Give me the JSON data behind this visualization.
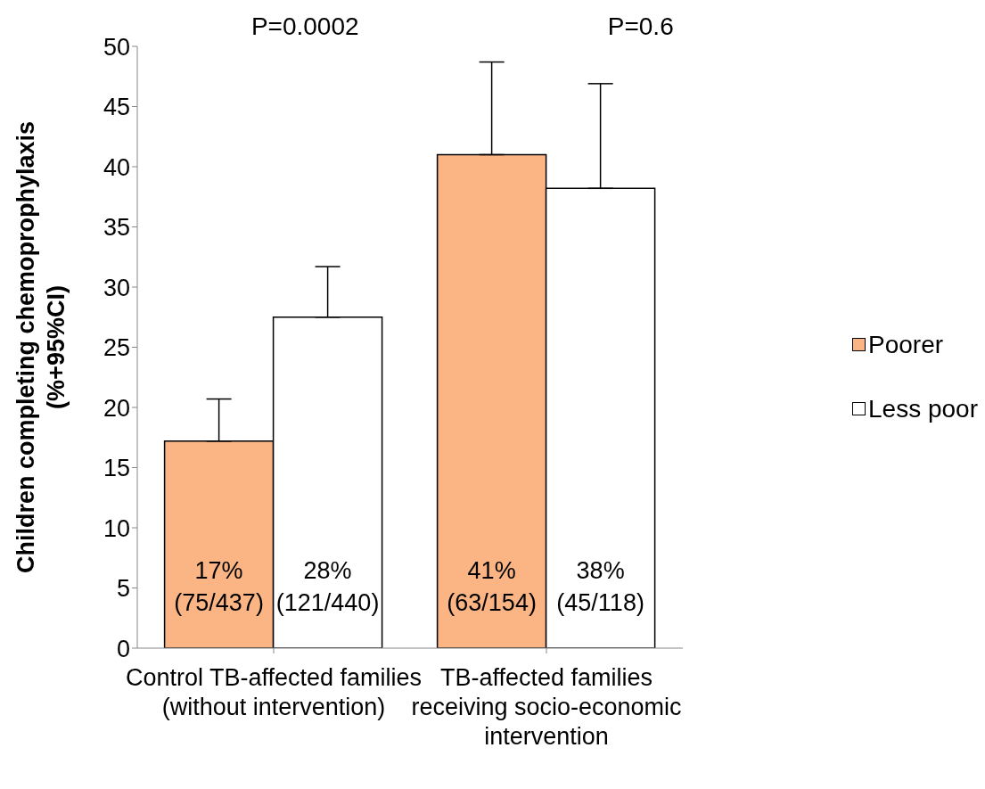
{
  "chart_data": {
    "type": "bar",
    "ylabel": "Children completing chemoprophylaxis (%+95%CI)",
    "categories": [
      "Control TB-affected families (without intervention)",
      "TB-affected families receiving socio-economic intervention"
    ],
    "series": [
      {
        "name": "Poorer",
        "color": "#fbb584",
        "values": [
          17.2,
          41
        ],
        "errors": [
          [
            17.2,
            20.7
          ],
          [
            41,
            48.7
          ]
        ],
        "value_labels": [
          "17%\n(75/437)",
          "41%\n(63/154)"
        ]
      },
      {
        "name": "Less poor",
        "color": "#ffffff",
        "values": [
          27.5,
          38.2
        ],
        "errors": [
          [
            27.5,
            31.7
          ],
          [
            38.2,
            46.9
          ]
        ],
        "value_labels": [
          "28%\n(121/440)",
          "38%\n(45/118)"
        ]
      }
    ],
    "annotations": [
      "P=0.0002",
      "P=0.6"
    ],
    "ylim": [
      0,
      50
    ],
    "yticks": [
      0,
      5,
      10,
      15,
      20,
      25,
      30,
      35,
      40,
      45,
      50
    ],
    "grid": false,
    "legend": "right"
  }
}
